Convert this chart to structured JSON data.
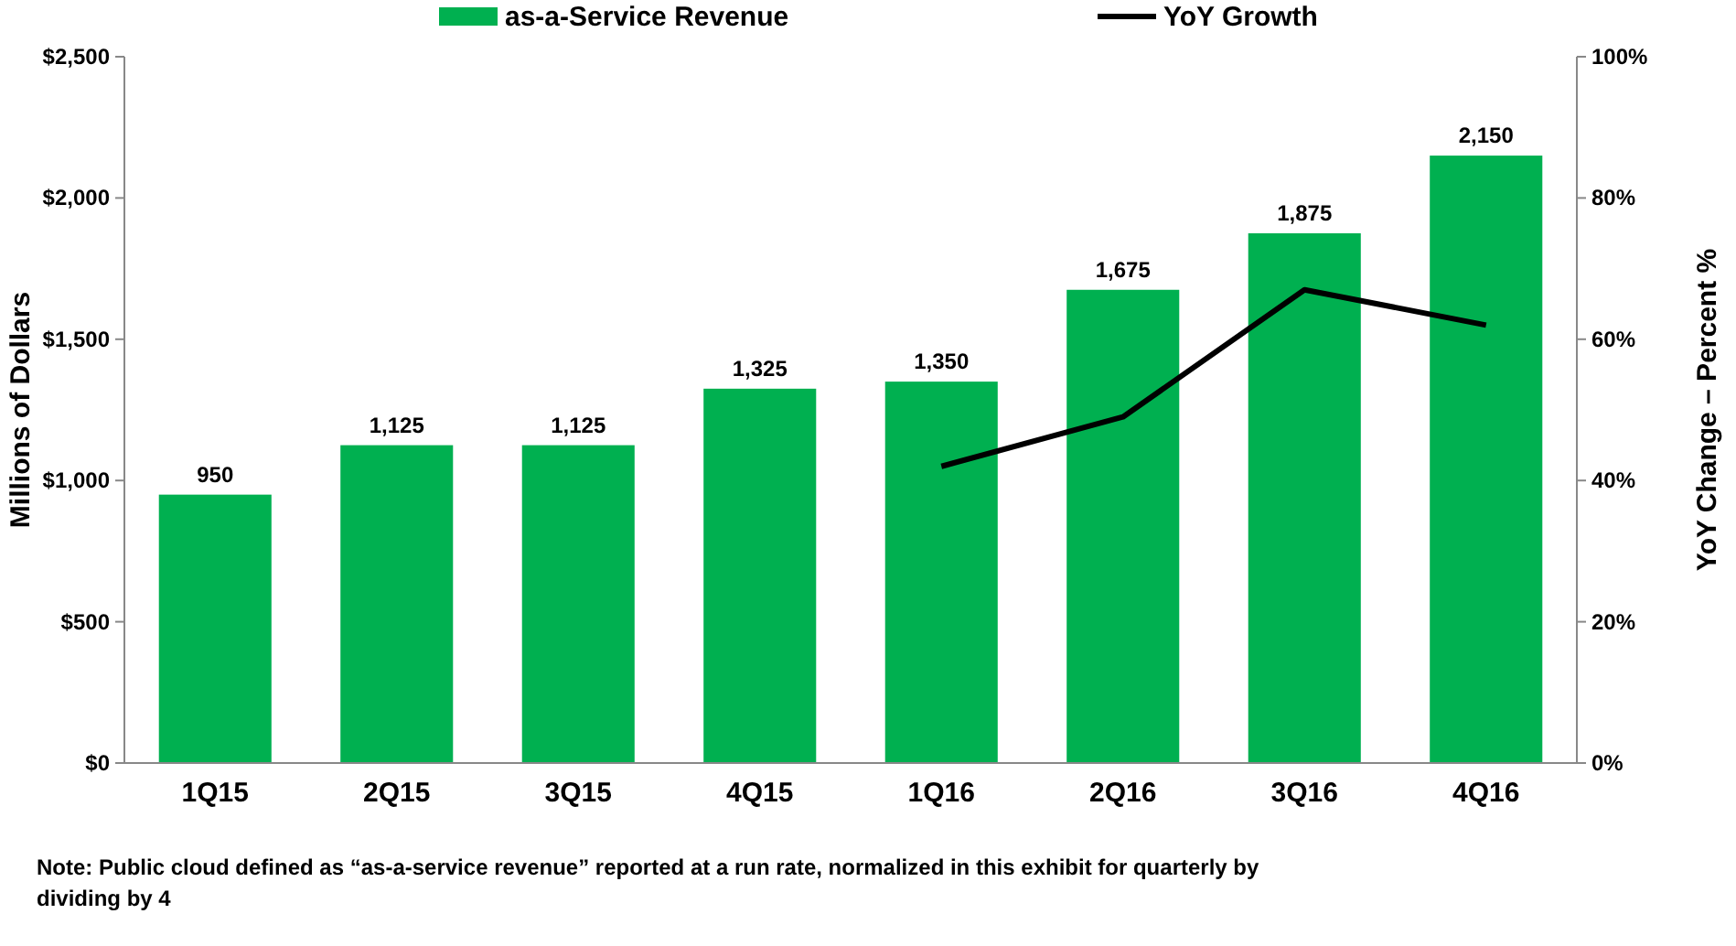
{
  "chart_data": {
    "type": "bar",
    "categories": [
      "1Q15",
      "2Q15",
      "3Q15",
      "4Q15",
      "1Q16",
      "2Q16",
      "3Q16",
      "4Q16"
    ],
    "series": [
      {
        "name": "as-a-Service Revenue",
        "color": "#00b050",
        "values": [
          950,
          1125,
          1125,
          1325,
          1350,
          1675,
          1875,
          2150
        ],
        "value_labels": [
          "950",
          "1,125",
          "1,125",
          "1,325",
          "1,350",
          "1,675",
          "1,875",
          "2,150"
        ]
      },
      {
        "name": "YoY Growth",
        "type": "line",
        "axis": "y2",
        "color": "#000000",
        "values": [
          null,
          null,
          null,
          null,
          42,
          49,
          67,
          62
        ]
      }
    ],
    "ylabel": "Millions of Dollars",
    "y2label": "YoY Change – Percent %",
    "ylim": [
      0,
      2500
    ],
    "yticks": [
      {
        "value": 0,
        "label": "$0"
      },
      {
        "value": 500,
        "label": "$500"
      },
      {
        "value": 1000,
        "label": "$1,000"
      },
      {
        "value": 1500,
        "label": "$1,500"
      },
      {
        "value": 2000,
        "label": "$2,000"
      },
      {
        "value": 2500,
        "label": "$2,500"
      }
    ],
    "y2lim": [
      0,
      100
    ],
    "y2ticks": [
      {
        "value": 0,
        "label": "0%"
      },
      {
        "value": 20,
        "label": "20%"
      },
      {
        "value": 40,
        "label": "40%"
      },
      {
        "value": 60,
        "label": "60%"
      },
      {
        "value": 80,
        "label": "80%"
      },
      {
        "value": 100,
        "label": "100%"
      }
    ],
    "legend": "top",
    "grid": false,
    "marker": "none",
    "annotations": [
      "Note: Public cloud defined as “as-a-service revenue” reported at a run rate, normalized in this exhibit for quarterly by dividing by 4"
    ]
  }
}
